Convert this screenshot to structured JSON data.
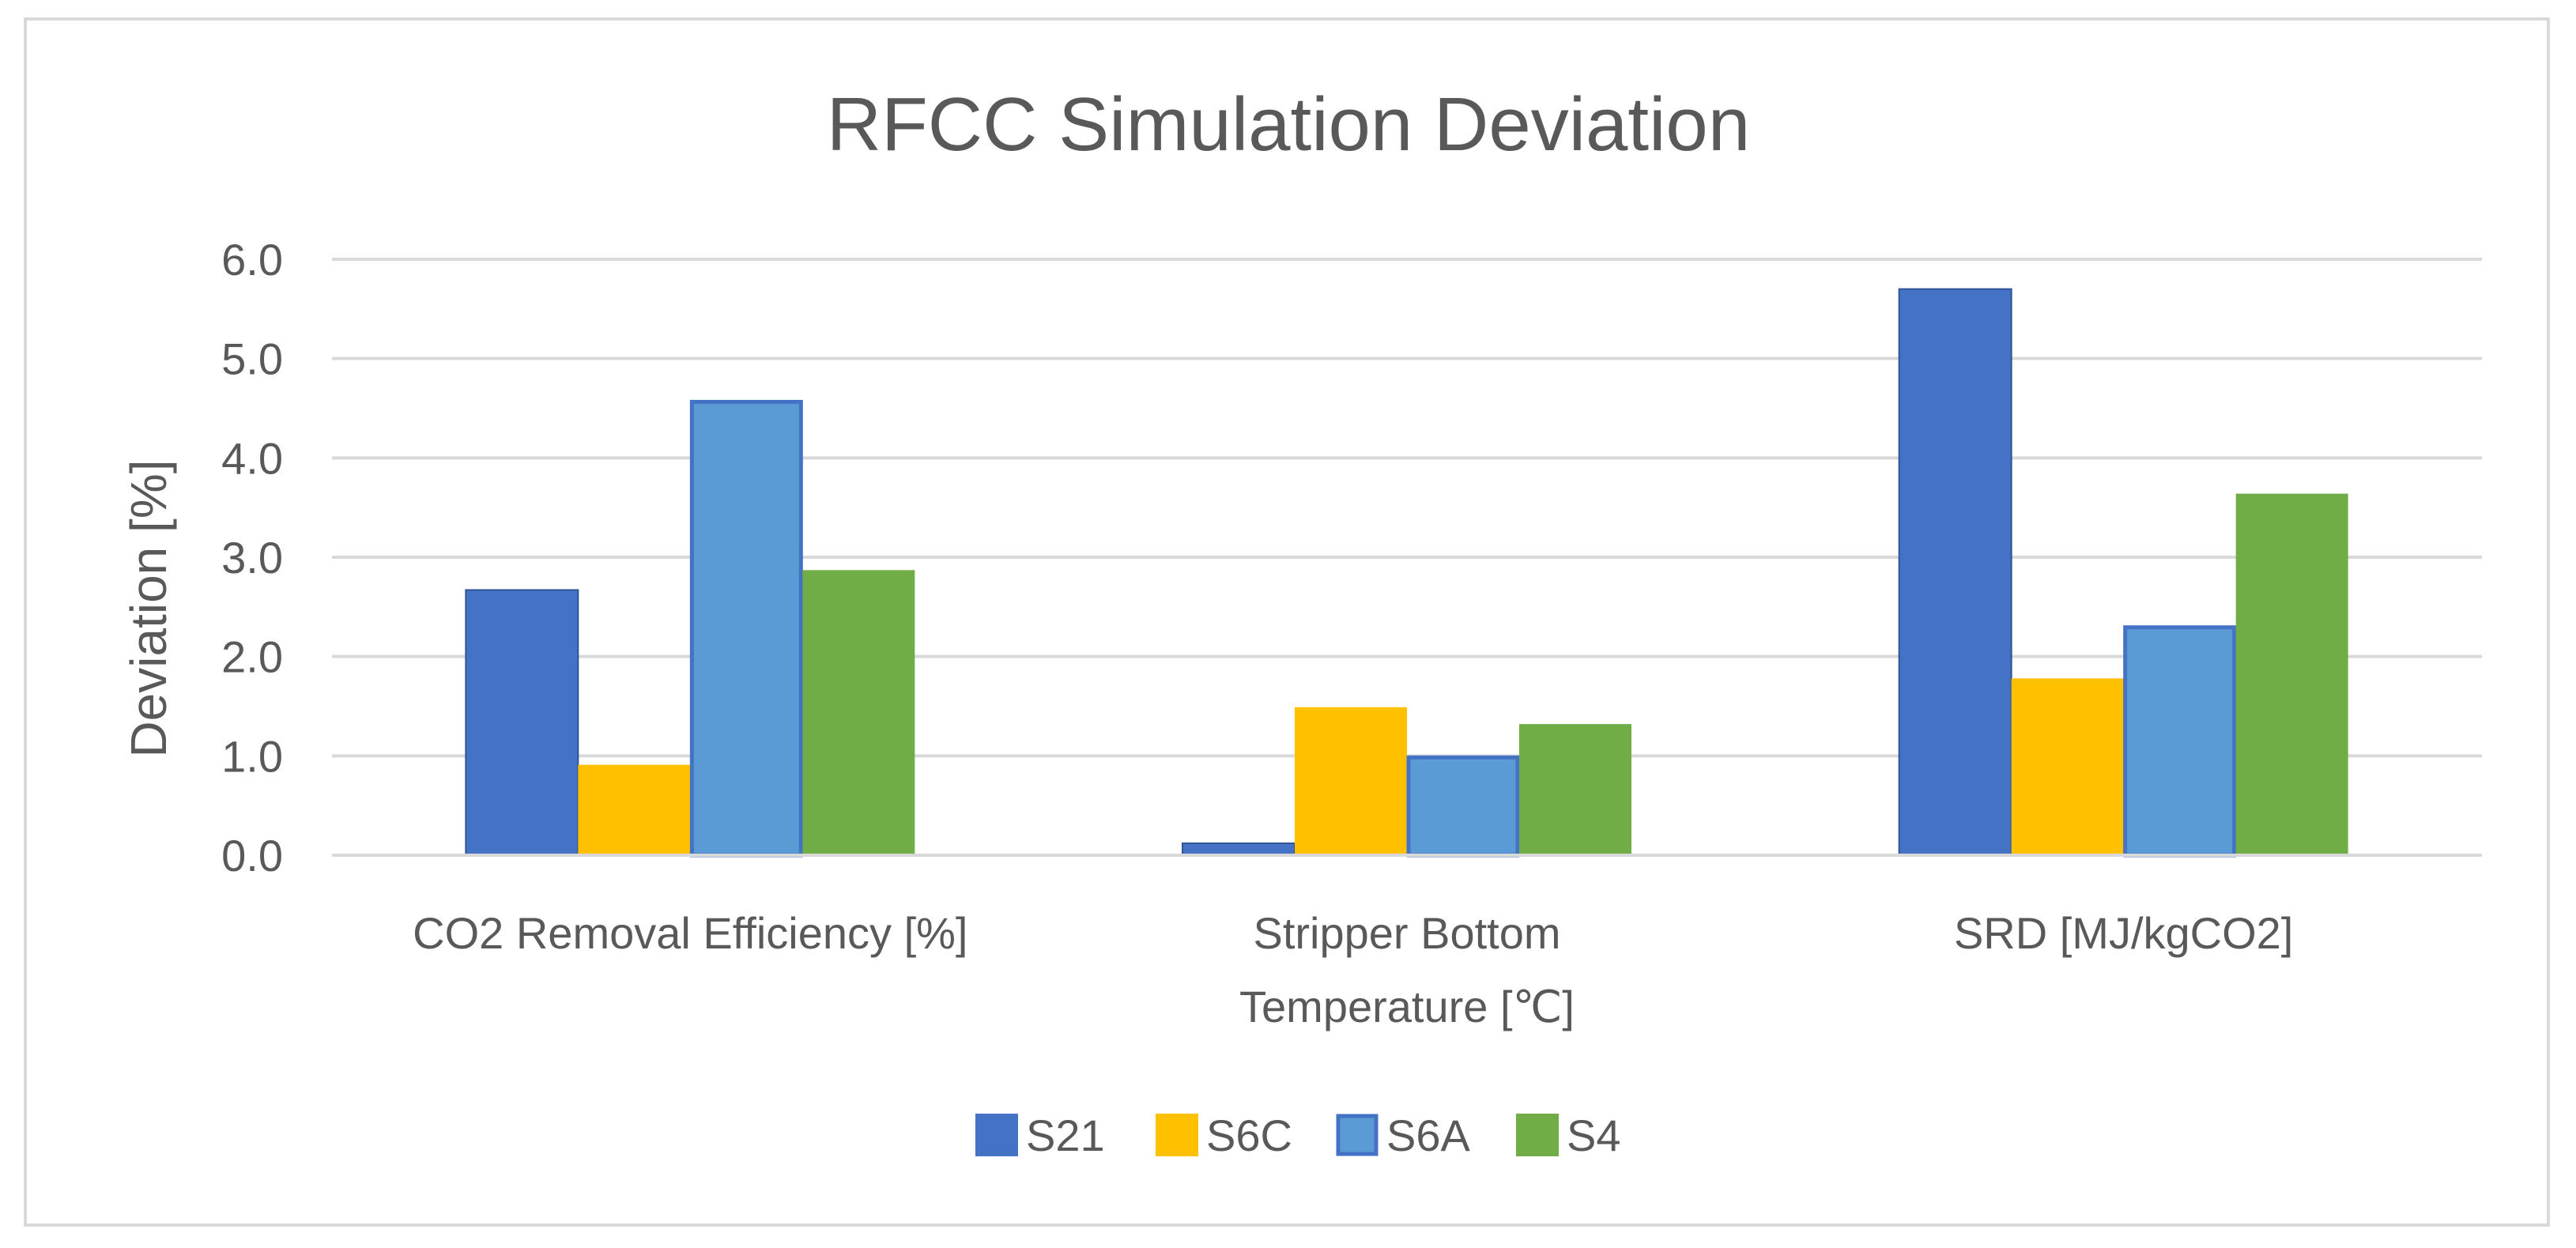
{
  "chart_data": {
    "type": "bar",
    "title": "RFCC Simulation Deviation",
    "xlabel": "",
    "ylabel": "Deviation [%]",
    "ylim": [
      0,
      6
    ],
    "yticks": [
      "0.0",
      "1.0",
      "2.0",
      "3.0",
      "4.0",
      "5.0",
      "6.0"
    ],
    "grid": true,
    "legend_position": "bottom-center",
    "categories": [
      [
        "CO2 Removal Efficiency [%]"
      ],
      [
        "Stripper Bottom",
        "Temperature [℃]"
      ],
      [
        "SRD [MJ/kgCO2]"
      ]
    ],
    "series": [
      {
        "name": "S21",
        "color": "#4472C4",
        "values": [
          2.67,
          0.12,
          5.7
        ]
      },
      {
        "name": "S6C",
        "color": "#FFC000",
        "values": [
          0.91,
          1.49,
          1.78
        ]
      },
      {
        "name": "S6A",
        "color": "#5B9BD5",
        "values": [
          4.58,
          1.0,
          2.31
        ]
      },
      {
        "name": "S4",
        "color": "#70AD47",
        "values": [
          2.87,
          1.32,
          3.64
        ]
      }
    ]
  }
}
